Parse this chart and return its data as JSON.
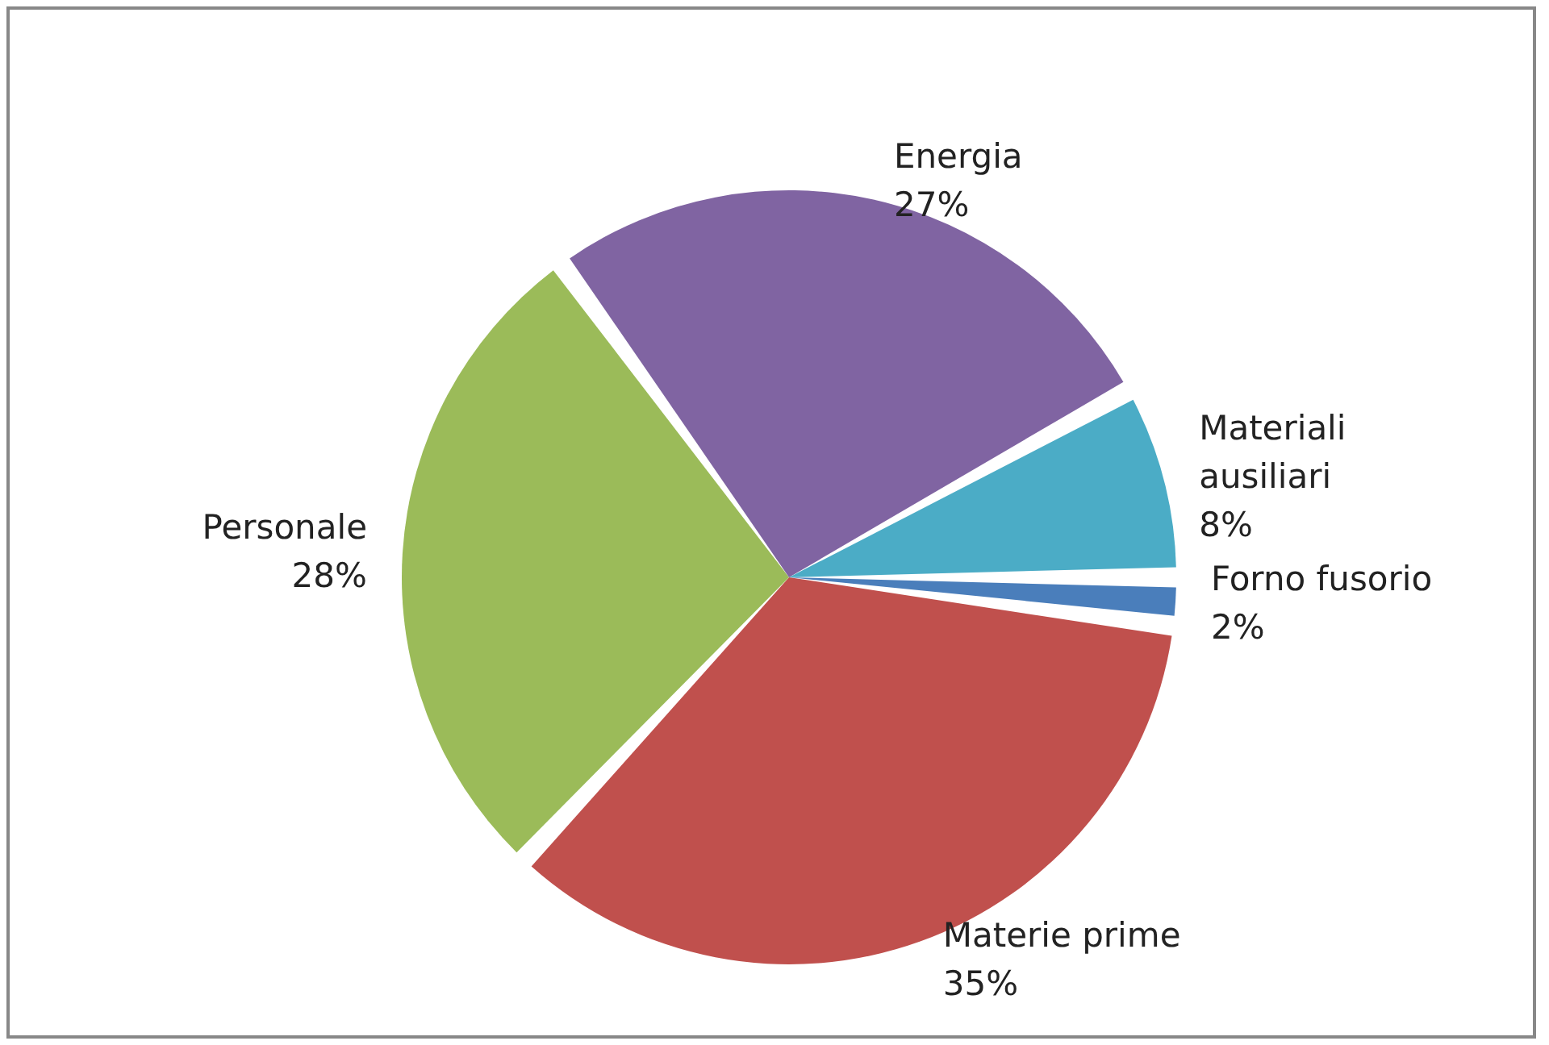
{
  "chart_data": {
    "type": "pie",
    "categories": [
      "Forno fusorio",
      "Materie prime",
      "Personale",
      "Energia",
      "Materiali ausiliari"
    ],
    "values": [
      2,
      35,
      28,
      27,
      8
    ],
    "colors": [
      "#4a7ebb",
      "#c0504d",
      "#9bbb59",
      "#8064a2",
      "#4bacc6"
    ],
    "value_labels": [
      "2%",
      "35%",
      "28%",
      "27%",
      "8%"
    ],
    "legend": false
  }
}
